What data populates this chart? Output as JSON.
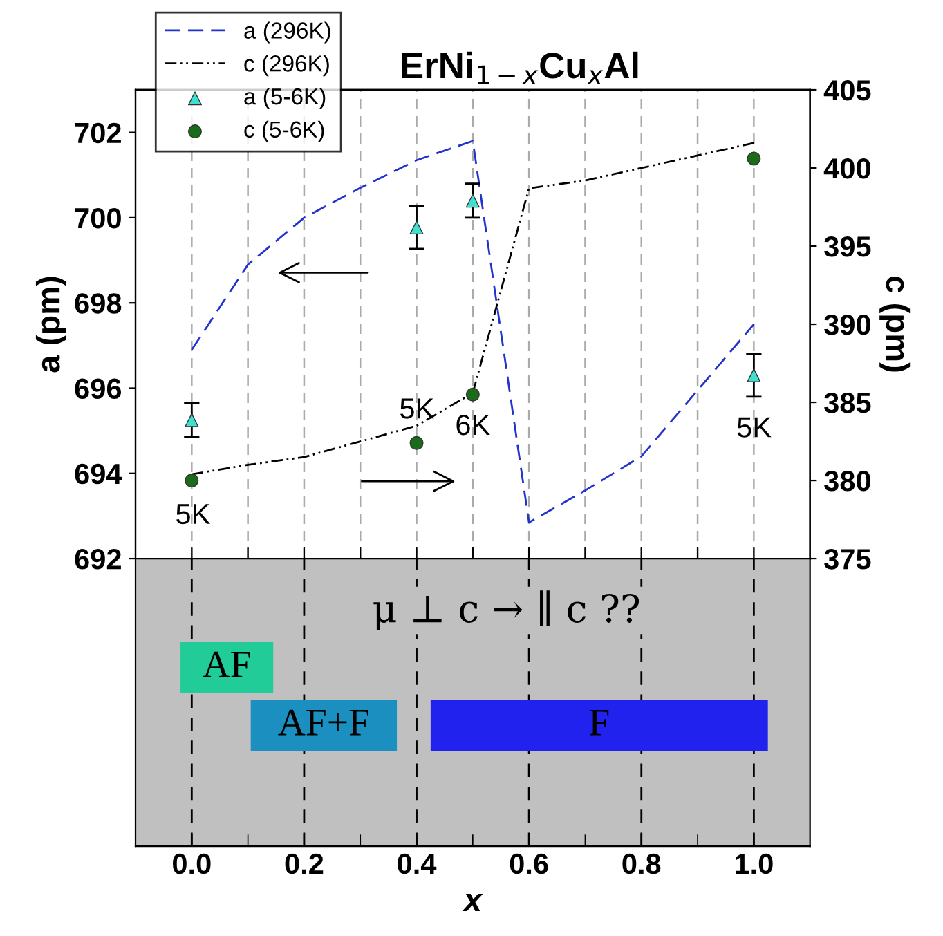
{
  "chart_data": [
    {
      "type": "line",
      "title": "ErNi$_{1−x}$Cu$_{x}$Al",
      "ylabel": "a (pm)",
      "y2label": "c (pm)",
      "x": [
        0.0,
        0.1,
        0.2,
        0.3,
        0.4,
        0.5,
        0.6,
        0.7,
        0.8,
        0.9,
        1.0
      ],
      "series": [
        {
          "name": "a (296K)",
          "color": "#2233cc",
          "line_style": "dashed",
          "marker": "none",
          "values": [
            696.9,
            698.9,
            700.0,
            700.7,
            701.35,
            701.8,
            692.85,
            693.6,
            694.4,
            695.95,
            697.5
          ]
        },
        {
          "name": "c (296K)",
          "color": "#000000",
          "line_style": "dotted",
          "marker": "none",
          "axis": "y2",
          "values": [
            380.4,
            381.0,
            381.5,
            382.5,
            383.5,
            385.6,
            398.7,
            399.2,
            400.0,
            400.8,
            401.6
          ]
        },
        {
          "name": "a (5-6K)",
          "type": "scatter",
          "color": "#40e0d0",
          "marker": "triangle",
          "x": [
            0.0,
            0.4,
            0.5,
            1.0
          ],
          "values": [
            695.25,
            699.77,
            700.4,
            696.3
          ],
          "errors": [
            0.4,
            0.5,
            0.4,
            0.5
          ]
        },
        {
          "name": "c (5-6K)",
          "type": "scatter",
          "color": "#1a6b1a",
          "marker": "circle",
          "axis": "y2",
          "x": [
            0.0,
            0.4,
            0.5,
            1.0
          ],
          "values": [
            380.0,
            382.4,
            385.5,
            400.6
          ]
        }
      ],
      "annotations": [
        "5K",
        "5K",
        "6K",
        "5K"
      ],
      "xlim": [
        -0.1,
        1.1
      ],
      "xticks": [
        {
          "value": 0.0,
          "label": null
        },
        {
          "value": 0.1,
          "label": null
        },
        {
          "value": 0.2,
          "label": null
        },
        {
          "value": 0.3,
          "label": null
        },
        {
          "value": 0.4,
          "label": null
        },
        {
          "value": 0.5,
          "label": null
        },
        {
          "value": 0.6,
          "label": null
        },
        {
          "value": 0.7,
          "label": null
        },
        {
          "value": 0.8,
          "label": null
        },
        {
          "value": 0.9,
          "label": null
        },
        {
          "value": 1.0,
          "label": null
        }
      ],
      "ylim": [
        692,
        703
      ],
      "yticks": [
        692,
        694,
        696,
        698,
        700,
        702
      ],
      "y2lim": [
        375,
        405
      ],
      "y2ticks": [
        375,
        380,
        385,
        390,
        395,
        400,
        405
      ],
      "grid": "x",
      "legend": "top left",
      "tick_labels": "y"
    },
    {
      "type": "bar",
      "orientation": "horizontal",
      "xlabel": "x",
      "categories": [
        null,
        null
      ],
      "series": [
        {
          "values": [
            0.165,
            0.26
          ],
          "base": [
            -0.02,
            0.105
          ],
          "colors": [
            "#22cc99",
            "#1a8fc0"
          ],
          "value_labels": [
            "AF",
            "AF+F"
          ]
        },
        {
          "values": [
            null,
            0.6
          ],
          "base": [
            null,
            0.425
          ],
          "colors": [
            null,
            "#2222ee"
          ],
          "value_labels": [
            null,
            "F"
          ]
        }
      ],
      "annotations": [
        "μ ⊥ c → ∥ c ??"
      ],
      "xlim": [
        -0.1,
        1.1
      ],
      "xticks": [
        {
          "value": 0.0,
          "label": "0.0"
        },
        {
          "value": 0.1,
          "label": null
        },
        0.2,
        {
          "value": 0.3,
          "label": null
        },
        0.4,
        {
          "value": 0.5,
          "label": null
        },
        0.6,
        {
          "value": 0.7,
          "label": null
        },
        0.8,
        {
          "value": 0.9,
          "label": null
        },
        {
          "value": 1.0,
          "label": "1.0"
        }
      ],
      "grid": "x",
      "tick_labels": "x"
    }
  ]
}
